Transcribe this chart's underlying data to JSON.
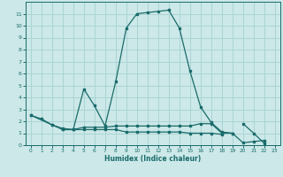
{
  "bg_color": "#cce8e8",
  "grid_color": "#aad4d4",
  "line_color": "#1a6b6b",
  "xlabel": "Humidex (Indice chaleur)",
  "xlim": [
    -0.5,
    23.5
  ],
  "ylim": [
    0,
    12
  ],
  "xticks": [
    0,
    1,
    2,
    3,
    4,
    5,
    6,
    7,
    8,
    9,
    10,
    11,
    12,
    13,
    14,
    15,
    16,
    17,
    18,
    19,
    20,
    21,
    22,
    23
  ],
  "yticks": [
    0,
    1,
    2,
    3,
    4,
    5,
    6,
    7,
    8,
    9,
    10,
    11
  ],
  "series": [
    {
      "x": [
        0,
        1,
        2,
        3,
        4,
        5,
        6,
        7,
        8,
        9,
        10,
        11,
        12,
        13,
        14,
        15,
        16,
        17,
        18,
        19,
        20,
        21,
        22
      ],
      "y": [
        2.5,
        2.2,
        1.7,
        1.4,
        1.3,
        4.7,
        3.3,
        1.6,
        5.3,
        9.8,
        11.0,
        11.1,
        11.2,
        11.3,
        9.8,
        6.2,
        3.2,
        1.9,
        1.1,
        1.0,
        0.2,
        0.3,
        0.4
      ]
    },
    {
      "x": [
        0,
        2,
        3,
        4,
        5,
        6,
        7,
        8,
        9,
        10,
        11,
        12,
        13,
        14,
        15,
        16,
        17,
        18,
        19
      ],
      "y": [
        2.5,
        1.7,
        1.3,
        1.3,
        1.5,
        1.5,
        1.5,
        1.6,
        1.6,
        1.6,
        1.6,
        1.6,
        1.6,
        1.6,
        1.6,
        1.8,
        1.8,
        1.0,
        1.0
      ]
    },
    {
      "x": [
        3,
        4,
        5,
        6,
        7,
        8,
        9,
        10,
        11,
        12,
        13,
        14,
        15,
        16,
        17,
        18
      ],
      "y": [
        1.3,
        1.3,
        1.3,
        1.3,
        1.3,
        1.3,
        1.1,
        1.1,
        1.1,
        1.1,
        1.1,
        1.1,
        1.0,
        1.0,
        1.0,
        0.9
      ]
    },
    {
      "x": [
        20,
        21,
        22
      ],
      "y": [
        1.8,
        1.0,
        0.15
      ]
    }
  ]
}
